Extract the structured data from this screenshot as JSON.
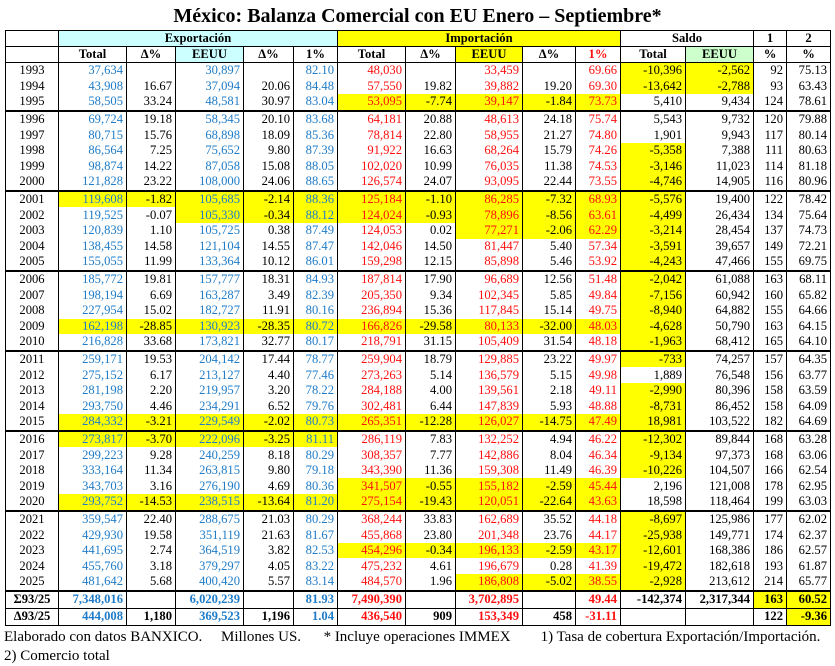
{
  "title": "México: Balanza Comercial con EU Enero – Septiembre*",
  "groups": {
    "exportacion": "Exportación",
    "importacion": "Importación",
    "saldo": "Saldo",
    "c1": "1",
    "c2": "2"
  },
  "columns": [
    "Total",
    "Δ%",
    "EEUU",
    "Δ%",
    "1%",
    "Total",
    "Δ%",
    "EEUU",
    "Δ%",
    "1%",
    "Total",
    "EEUU",
    "%",
    "%"
  ],
  "rows": [
    {
      "year": "1993",
      "v": [
        "37,634",
        "",
        "30,897",
        "",
        "82.10",
        "48,030",
        "",
        "33,459",
        "",
        "69.66",
        "-10,396",
        "-2,562",
        "92",
        "75.13"
      ],
      "hl": [
        10,
        11
      ]
    },
    {
      "year": "1994",
      "v": [
        "43,908",
        "16.67",
        "37,094",
        "20.06",
        "84.48",
        "57,550",
        "19.82",
        "39,882",
        "19.20",
        "69.30",
        "-13,642",
        "-2,788",
        "93",
        "63.43"
      ],
      "hl": [
        10,
        11
      ]
    },
    {
      "year": "1995",
      "v": [
        "58,505",
        "33.24",
        "48,581",
        "30.97",
        "83.04",
        "53,095",
        "-7.74",
        "39,147",
        "-1.84",
        "73.73",
        "5,410",
        "9,434",
        "124",
        "78.61"
      ],
      "hl": [
        5,
        6,
        7,
        8,
        9
      ],
      "sep": true
    },
    {
      "year": "1996",
      "v": [
        "69,724",
        "19.18",
        "58,345",
        "20.10",
        "83.68",
        "64,181",
        "20.88",
        "48,613",
        "24.18",
        "75.74",
        "5,543",
        "9,732",
        "120",
        "79.88"
      ],
      "hl": []
    },
    {
      "year": "1997",
      "v": [
        "80,715",
        "15.76",
        "68,898",
        "18.09",
        "85.36",
        "78,814",
        "22.80",
        "58,955",
        "21.27",
        "74.80",
        "1,901",
        "9,943",
        "117",
        "80.14"
      ],
      "hl": []
    },
    {
      "year": "1998",
      "v": [
        "86,564",
        "7.25",
        "75,652",
        "9.80",
        "87.39",
        "91,922",
        "16.63",
        "68,264",
        "15.79",
        "74.26",
        "-5,358",
        "7,388",
        "111",
        "80.63"
      ],
      "hl": [
        10
      ]
    },
    {
      "year": "1999",
      "v": [
        "98,874",
        "14.22",
        "87,058",
        "15.08",
        "88.05",
        "102,020",
        "10.99",
        "76,035",
        "11.38",
        "74.53",
        "-3,146",
        "11,023",
        "114",
        "81.18"
      ],
      "hl": [
        10
      ]
    },
    {
      "year": "2000",
      "v": [
        "121,828",
        "23.22",
        "108,000",
        "24.06",
        "88.65",
        "126,574",
        "24.07",
        "93,095",
        "22.44",
        "73.55",
        "-4,746",
        "14,905",
        "116",
        "80.96"
      ],
      "hl": [
        10
      ],
      "sep": true
    },
    {
      "year": "2001",
      "v": [
        "119,608",
        "-1.82",
        "105,685",
        "-2.14",
        "88.36",
        "125,184",
        "-1.10",
        "86,285",
        "-7.32",
        "68.93",
        "-5,576",
        "19,400",
        "122",
        "78.42"
      ],
      "hl": [
        0,
        1,
        2,
        3,
        4,
        5,
        6,
        7,
        8,
        9,
        10
      ]
    },
    {
      "year": "2002",
      "v": [
        "119,525",
        "-0.07",
        "105,330",
        "-0.34",
        "88.12",
        "124,024",
        "-0.93",
        "78,896",
        "-8.56",
        "63.61",
        "-4,499",
        "26,434",
        "134",
        "75.64"
      ],
      "hl": [
        2,
        3,
        4,
        5,
        6,
        7,
        8,
        9,
        10
      ]
    },
    {
      "year": "2003",
      "v": [
        "120,839",
        "1.10",
        "105,725",
        "0.38",
        "87.49",
        "124,053",
        "0.02",
        "77,271",
        "-2.06",
        "62.29",
        "-3,214",
        "28,454",
        "137",
        "74.73"
      ],
      "hl": [
        7,
        8,
        9,
        10
      ]
    },
    {
      "year": "2004",
      "v": [
        "138,455",
        "14.58",
        "121,104",
        "14.55",
        "87.47",
        "142,046",
        "14.50",
        "81,447",
        "5.40",
        "57.34",
        "-3,591",
        "39,657",
        "149",
        "72.21"
      ],
      "hl": [
        10
      ]
    },
    {
      "year": "2005",
      "v": [
        "155,055",
        "11.99",
        "133,364",
        "10.12",
        "86.01",
        "159,298",
        "12.15",
        "85,898",
        "5.46",
        "53.92",
        "-4,243",
        "47,466",
        "155",
        "69.75"
      ],
      "hl": [
        10
      ],
      "sep": true
    },
    {
      "year": "2006",
      "v": [
        "185,772",
        "19.81",
        "157,777",
        "18.31",
        "84.93",
        "187,814",
        "17.90",
        "96,689",
        "12.56",
        "51.48",
        "-2,042",
        "61,088",
        "163",
        "68.11"
      ],
      "hl": [
        10
      ]
    },
    {
      "year": "2007",
      "v": [
        "198,194",
        "6.69",
        "163,287",
        "3.49",
        "82.39",
        "205,350",
        "9.34",
        "102,345",
        "5.85",
        "49.84",
        "-7,156",
        "60,942",
        "160",
        "65.82"
      ],
      "hl": [
        10
      ]
    },
    {
      "year": "2008",
      "v": [
        "227,954",
        "15.02",
        "182,727",
        "11.91",
        "80.16",
        "236,894",
        "15.36",
        "117,845",
        "15.14",
        "49.75",
        "-8,940",
        "64,882",
        "155",
        "64.66"
      ],
      "hl": [
        10
      ]
    },
    {
      "year": "2009",
      "v": [
        "162,198",
        "-28.85",
        "130,923",
        "-28.35",
        "80.72",
        "166,826",
        "-29.58",
        "80,133",
        "-32.00",
        "48.03",
        "-4,628",
        "50,790",
        "163",
        "64.15"
      ],
      "hl": [
        0,
        1,
        2,
        3,
        4,
        5,
        6,
        7,
        8,
        9,
        10
      ]
    },
    {
      "year": "2010",
      "v": [
        "216,828",
        "33.68",
        "173,821",
        "32.77",
        "80.17",
        "218,791",
        "31.15",
        "105,409",
        "31.54",
        "48.18",
        "-1,963",
        "68,412",
        "165",
        "64.10"
      ],
      "hl": [
        10
      ],
      "sep": true
    },
    {
      "year": "2011",
      "v": [
        "259,171",
        "19.53",
        "204,142",
        "17.44",
        "78.77",
        "259,904",
        "18.79",
        "129,885",
        "23.22",
        "49.97",
        "-733",
        "74,257",
        "157",
        "64.35"
      ],
      "hl": [
        10
      ]
    },
    {
      "year": "2012",
      "v": [
        "275,152",
        "6.17",
        "213,127",
        "4.40",
        "77.46",
        "273,263",
        "5.14",
        "136,579",
        "5.15",
        "49.98",
        "1,889",
        "76,548",
        "156",
        "63.77"
      ],
      "hl": []
    },
    {
      "year": "2013",
      "v": [
        "281,198",
        "2.20",
        "219,957",
        "3.20",
        "78.22",
        "284,188",
        "4.00",
        "139,561",
        "2.18",
        "49.11",
        "-2,990",
        "80,396",
        "158",
        "63.59"
      ],
      "hl": [
        10
      ]
    },
    {
      "year": "2014",
      "v": [
        "293,750",
        "4.46",
        "234,291",
        "6.52",
        "79.76",
        "302,481",
        "6.44",
        "147,839",
        "5.93",
        "48.88",
        "-8,731",
        "86,452",
        "158",
        "64.09"
      ],
      "hl": [
        10
      ]
    },
    {
      "year": "2015",
      "v": [
        "284,332",
        "-3.21",
        "229,549",
        "-2.02",
        "80.73",
        "265,351",
        "-12.28",
        "126,027",
        "-14.75",
        "47.49",
        "18,981",
        "103,522",
        "182",
        "64.69"
      ],
      "hl": [
        0,
        1,
        2,
        3,
        4,
        5,
        6,
        7,
        8,
        9,
        10
      ],
      "sep": true
    },
    {
      "year": "2016",
      "v": [
        "273,817",
        "-3.70",
        "222,096",
        "-3.25",
        "81.11",
        "286,119",
        "7.83",
        "132,252",
        "4.94",
        "46.22",
        "-12,302",
        "89,844",
        "168",
        "63.28"
      ],
      "hl": [
        0,
        1,
        2,
        3,
        4,
        10
      ]
    },
    {
      "year": "2017",
      "v": [
        "299,223",
        "9.28",
        "240,259",
        "8.18",
        "80.29",
        "308,357",
        "7.77",
        "142,886",
        "8.04",
        "46.34",
        "-9,134",
        "97,373",
        "168",
        "63.06"
      ],
      "hl": [
        10
      ]
    },
    {
      "year": "2018",
      "v": [
        "333,164",
        "11.34",
        "263,815",
        "9.80",
        "79.18",
        "343,390",
        "11.36",
        "159,308",
        "11.49",
        "46.39",
        "-10,226",
        "104,507",
        "166",
        "62.54"
      ],
      "hl": [
        10
      ]
    },
    {
      "year": "2019",
      "v": [
        "343,703",
        "3.16",
        "276,190",
        "4.69",
        "80.36",
        "341,507",
        "-0.55",
        "155,182",
        "-2.59",
        "45.44",
        "2,196",
        "121,008",
        "178",
        "62.95"
      ],
      "hl": [
        5,
        6,
        7,
        8,
        9
      ]
    },
    {
      "year": "2020",
      "v": [
        "293,752",
        "-14.53",
        "238,515",
        "-13.64",
        "81.20",
        "275,154",
        "-19.43",
        "120,051",
        "-22.64",
        "43.63",
        "18,598",
        "118,464",
        "199",
        "63.03"
      ],
      "hl": [
        0,
        1,
        2,
        3,
        4,
        5,
        6,
        7,
        8,
        9
      ],
      "sep": true
    },
    {
      "year": "2021",
      "v": [
        "359,547",
        "22.40",
        "288,675",
        "21.03",
        "80.29",
        "368,244",
        "33.83",
        "162,689",
        "35.52",
        "44.18",
        "-8,697",
        "125,986",
        "177",
        "62.02"
      ],
      "hl": [
        10
      ]
    },
    {
      "year": "2022",
      "v": [
        "429,930",
        "19.58",
        "351,119",
        "21.63",
        "81.67",
        "455,868",
        "23.80",
        "201,348",
        "23.76",
        "44.17",
        "-25,938",
        "149,771",
        "174",
        "62.37"
      ],
      "hl": [
        10
      ]
    },
    {
      "year": "2023",
      "v": [
        "441,695",
        "2.74",
        "364,519",
        "3.82",
        "82.53",
        "454,296",
        "-0.34",
        "196,133",
        "-2.59",
        "43.17",
        "-12,601",
        "168,386",
        "186",
        "62.57"
      ],
      "hl": [
        5,
        6,
        7,
        8,
        9,
        10
      ]
    },
    {
      "year": "2024",
      "v": [
        "455,760",
        "3.18",
        "379,297",
        "4.05",
        "83.22",
        "475,232",
        "4.61",
        "196,679",
        "0.28",
        "41.39",
        "-19,472",
        "182,618",
        "193",
        "61.87"
      ],
      "hl": [
        10
      ]
    },
    {
      "year": "2025",
      "v": [
        "481,642",
        "5.68",
        "400,420",
        "5.57",
        "83.14",
        "484,570",
        "1.96",
        "186,808",
        "-5.02",
        "38.55",
        "-2,928",
        "213,612",
        "214",
        "65.77"
      ],
      "hl": [
        7,
        8,
        9,
        10
      ],
      "sep": true
    }
  ],
  "summary": [
    {
      "label": "Σ93/25",
      "v": [
        "7,348,016",
        "",
        "6,020,239",
        "",
        "81.93",
        "7,490,390",
        "",
        "3,702,895",
        "",
        "49.44",
        "-142,374",
        "2,317,344",
        "163",
        "60.52"
      ],
      "hl": [
        12,
        13
      ]
    },
    {
      "label": "Δ93/25",
      "v": [
        "444,008",
        "1,180",
        "369,523",
        "1,196",
        "1.04",
        "436,540",
        "909",
        "153,349",
        "458",
        "-31.11",
        "",
        "",
        "122",
        "-9.36"
      ],
      "hl": [
        13
      ]
    }
  ],
  "footer": {
    "source": "Elaborado con datos BANXICO.",
    "units": "Millones US.",
    "note": "* Incluye operaciones IMMEX",
    "note1": "1) Tasa de cobertura Exportación/Importación.",
    "note2": "2) Comercio total"
  }
}
